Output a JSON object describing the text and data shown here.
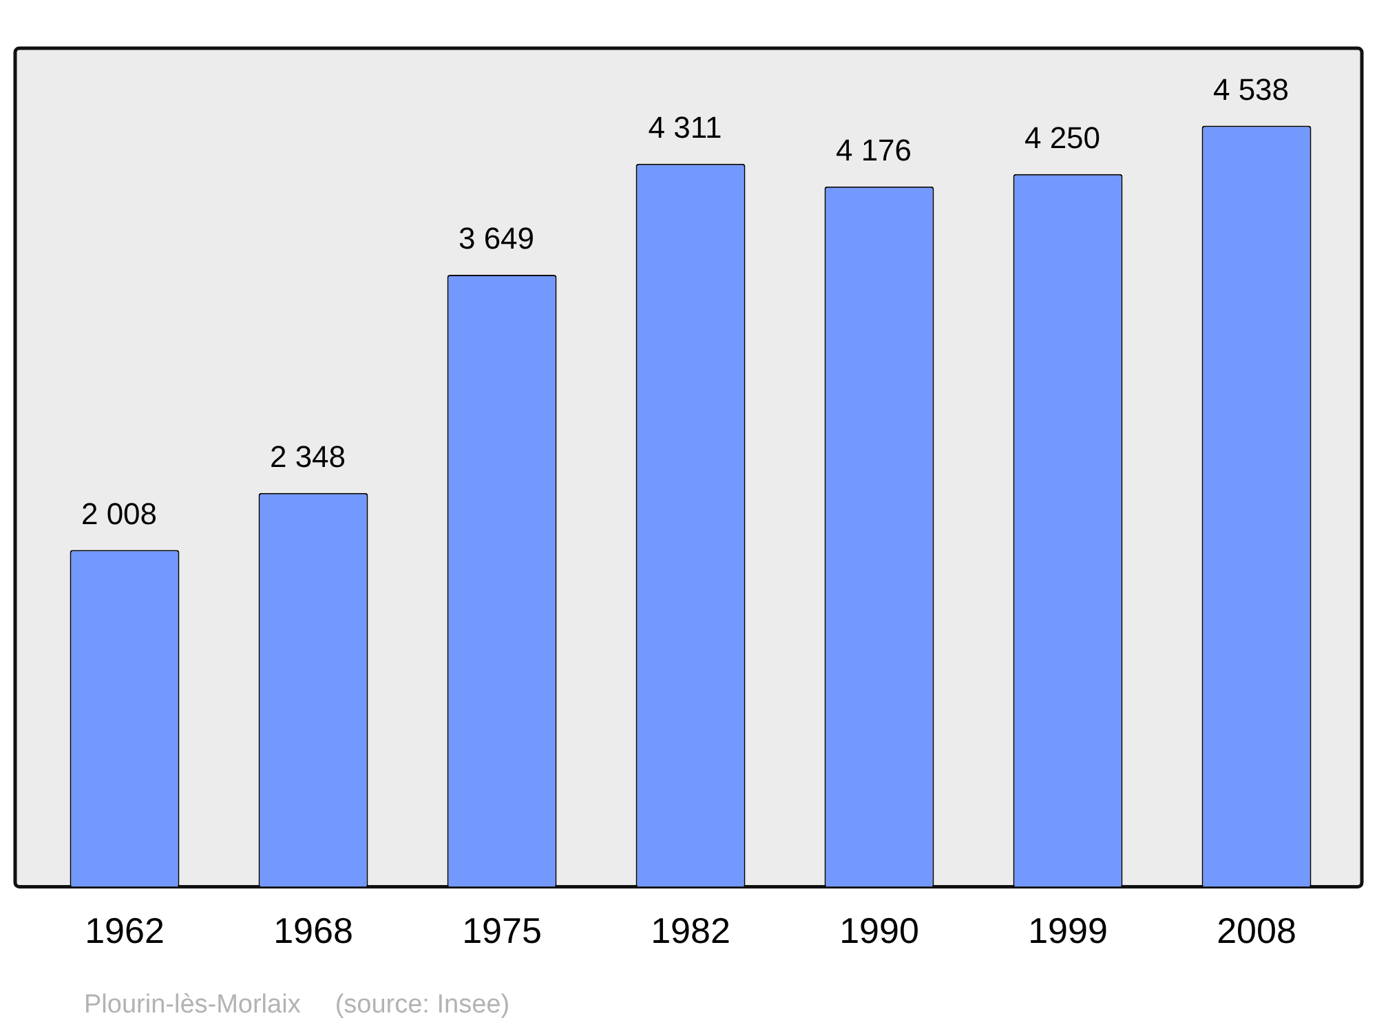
{
  "chart_data": {
    "type": "bar",
    "categories": [
      "1962",
      "1968",
      "1975",
      "1982",
      "1990",
      "1999",
      "2008"
    ],
    "values": [
      2008,
      2348,
      3649,
      4311,
      4176,
      4250,
      4538
    ],
    "value_labels": [
      "2 008",
      "2 348",
      "3 649",
      "4 311",
      "4 176",
      "4 250",
      "4 538"
    ],
    "color": "#7399ff",
    "grid": false,
    "legend": false,
    "annotations": [
      "Plourin-lès-Morlaix",
      "(source: Insee)"
    ]
  }
}
